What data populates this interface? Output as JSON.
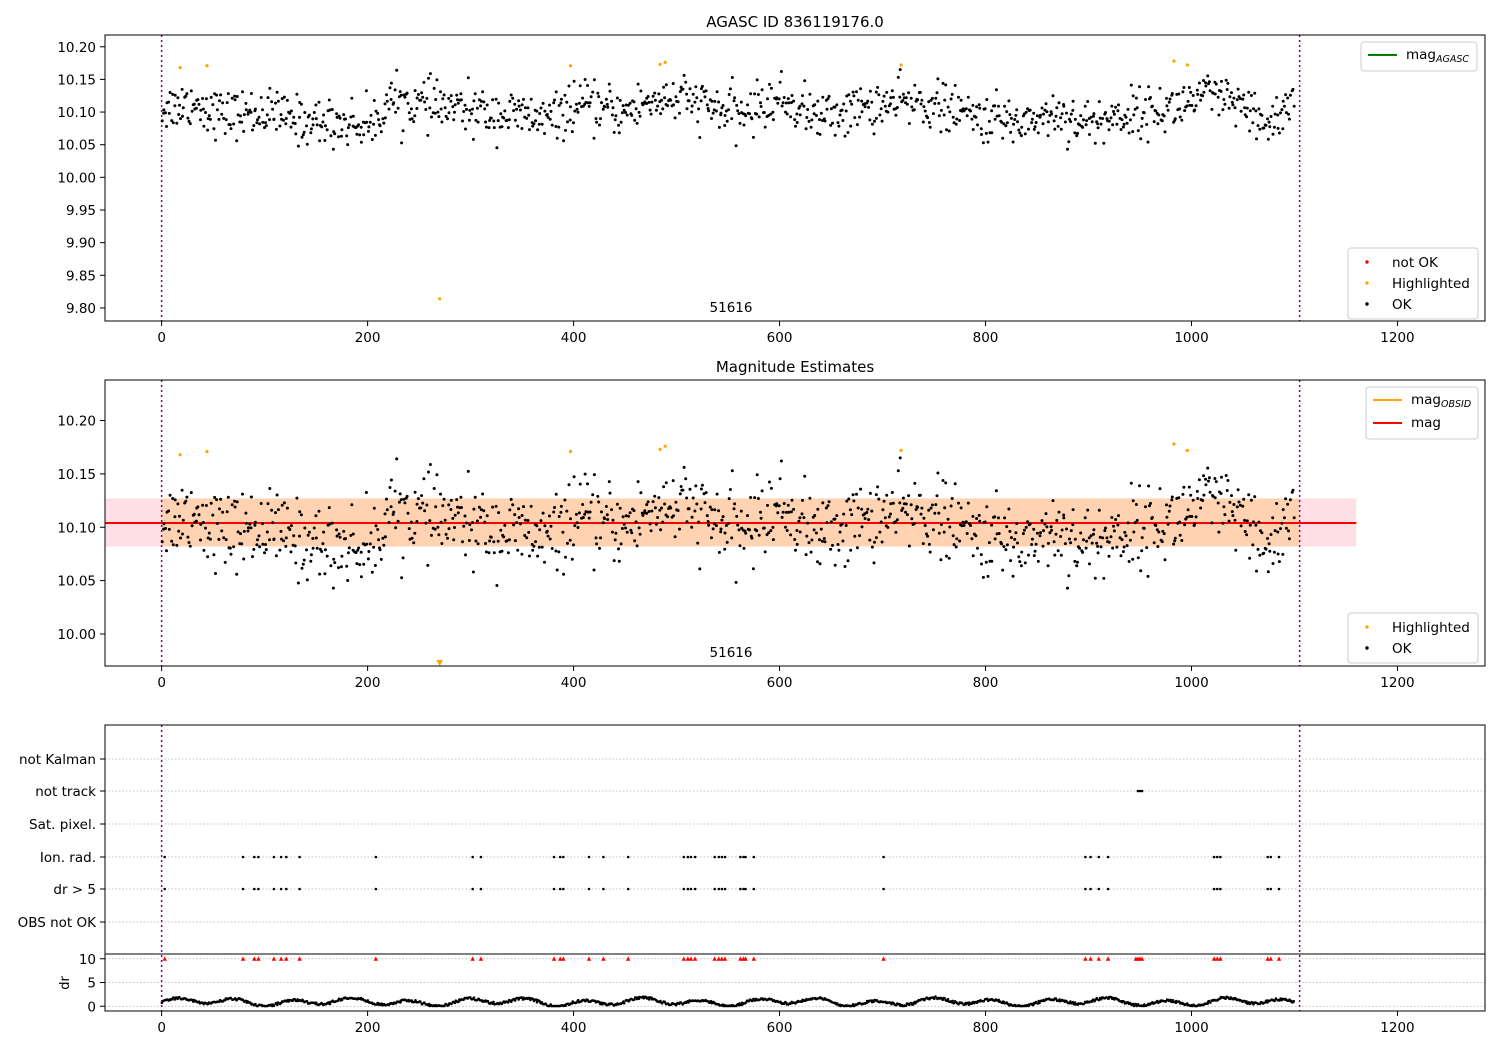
{
  "chart_data": [
    {
      "type": "scatter",
      "title": "AGASC ID 836119176.0",
      "xlim": [
        -55,
        1285
      ],
      "ylim": [
        9.78,
        10.218
      ],
      "xticks": [
        0,
        200,
        400,
        600,
        800,
        1000,
        1200
      ],
      "yticks": [
        9.8,
        9.85,
        9.9,
        9.95,
        10.0,
        10.05,
        10.1,
        10.15,
        10.2
      ],
      "ytick_labels": [
        "9.80",
        "9.85",
        "9.90",
        "9.95",
        "10.00",
        "10.05",
        "10.10",
        "10.15",
        "10.20"
      ],
      "obsid_boundaries": [
        0,
        1105
      ],
      "annotation": {
        "text": "51616",
        "x": 553,
        "y": 9.79
      },
      "legend_lines": [
        {
          "label": "mag",
          "sub": "AGASC",
          "color": "#008000"
        }
      ],
      "legend_points": [
        {
          "label": "not OK",
          "color": "#ff0000"
        },
        {
          "label": "Highlighted",
          "color": "#ffa500"
        },
        {
          "label": "OK",
          "color": "#000000"
        }
      ],
      "highlighted": [
        [
          18,
          10.168
        ],
        [
          44,
          10.171
        ],
        [
          397,
          10.171
        ],
        [
          484,
          10.173
        ],
        [
          489,
          10.176
        ],
        [
          718,
          10.172
        ],
        [
          983,
          10.178
        ],
        [
          996,
          10.172
        ],
        [
          270,
          9.814
        ]
      ],
      "grid": false
    },
    {
      "type": "scatter",
      "title": "Magnitude Estimates",
      "xlim": [
        -55,
        1285
      ],
      "ylim": [
        9.97,
        10.238
      ],
      "xticks": [
        0,
        200,
        400,
        600,
        800,
        1000,
        1200
      ],
      "yticks": [
        10.0,
        10.05,
        10.1,
        10.15,
        10.2
      ],
      "ytick_labels": [
        "10.00",
        "10.05",
        "10.10",
        "10.15",
        "10.20"
      ],
      "obsid_boundaries": [
        0,
        1105
      ],
      "annotation": {
        "text": "51616",
        "x": 553,
        "y": 9.979
      },
      "mean_mag": 10.104,
      "band": [
        10.082,
        10.127
      ],
      "band_x": [
        -55,
        1160
      ],
      "obsid_band_x": [
        0,
        1105
      ],
      "legend_lines": [
        {
          "label": "mag",
          "sub": "OBSID",
          "color": "#ffa500"
        },
        {
          "label": "mag",
          "sub": "",
          "color": "#ff0000"
        }
      ],
      "legend_points": [
        {
          "label": "Highlighted",
          "color": "#ffa500"
        },
        {
          "label": "OK",
          "color": "#000000"
        }
      ],
      "highlighted": [
        [
          18,
          10.168
        ],
        [
          44,
          10.171
        ],
        [
          397,
          10.171
        ],
        [
          484,
          10.173
        ],
        [
          489,
          10.176
        ],
        [
          718,
          10.172
        ],
        [
          983,
          10.178
        ],
        [
          996,
          10.172
        ]
      ],
      "off_scale_marker": [
        270,
        9.97
      ],
      "grid": false
    },
    {
      "type": "scatter",
      "xlim": [
        -55,
        1285
      ],
      "flag_rows": [
        "not Kalman",
        "not track",
        "Sat. pixel.",
        "Ion. rad.",
        "dr > 5",
        "OBS not OK"
      ],
      "flag_events": {
        "not track": [
          948,
          950,
          952
        ],
        "Ion. rad.": [
          3,
          79,
          90,
          94,
          109,
          116,
          121,
          134,
          208,
          302,
          310,
          381,
          387,
          390,
          415,
          429,
          453,
          507,
          511,
          514,
          518,
          537,
          541,
          544,
          547,
          562,
          565,
          567,
          575,
          701,
          897,
          902,
          910,
          919,
          1022,
          1025,
          1028,
          1074,
          1077,
          1085
        ],
        "dr > 5": [
          3,
          79,
          90,
          94,
          109,
          116,
          121,
          134,
          208,
          302,
          310,
          381,
          387,
          390,
          415,
          429,
          453,
          507,
          511,
          514,
          518,
          537,
          541,
          544,
          547,
          562,
          565,
          567,
          575,
          701,
          897,
          902,
          910,
          919,
          1022,
          1025,
          1028,
          1074,
          1077,
          1085
        ]
      },
      "dr": {
        "ylabel": "dr",
        "ylim": [
          -1,
          11
        ],
        "yticks": [
          0,
          5,
          10
        ],
        "clip_value": 10,
        "clipped_x": [
          3,
          79,
          90,
          94,
          109,
          116,
          121,
          134,
          208,
          302,
          310,
          381,
          387,
          390,
          415,
          429,
          453,
          507,
          511,
          514,
          518,
          537,
          541,
          544,
          547,
          562,
          565,
          567,
          575,
          701,
          897,
          902,
          910,
          919,
          946,
          948,
          950,
          952,
          1022,
          1025,
          1028,
          1074,
          1077,
          1085
        ],
        "marker_colors": {
          "clipped": "#ff0000",
          "normal": "#000000"
        }
      },
      "xticks": [
        0,
        200,
        400,
        600,
        800,
        1000,
        1200
      ],
      "obsid_boundaries": [
        0,
        1105
      ],
      "grid": true
    }
  ]
}
